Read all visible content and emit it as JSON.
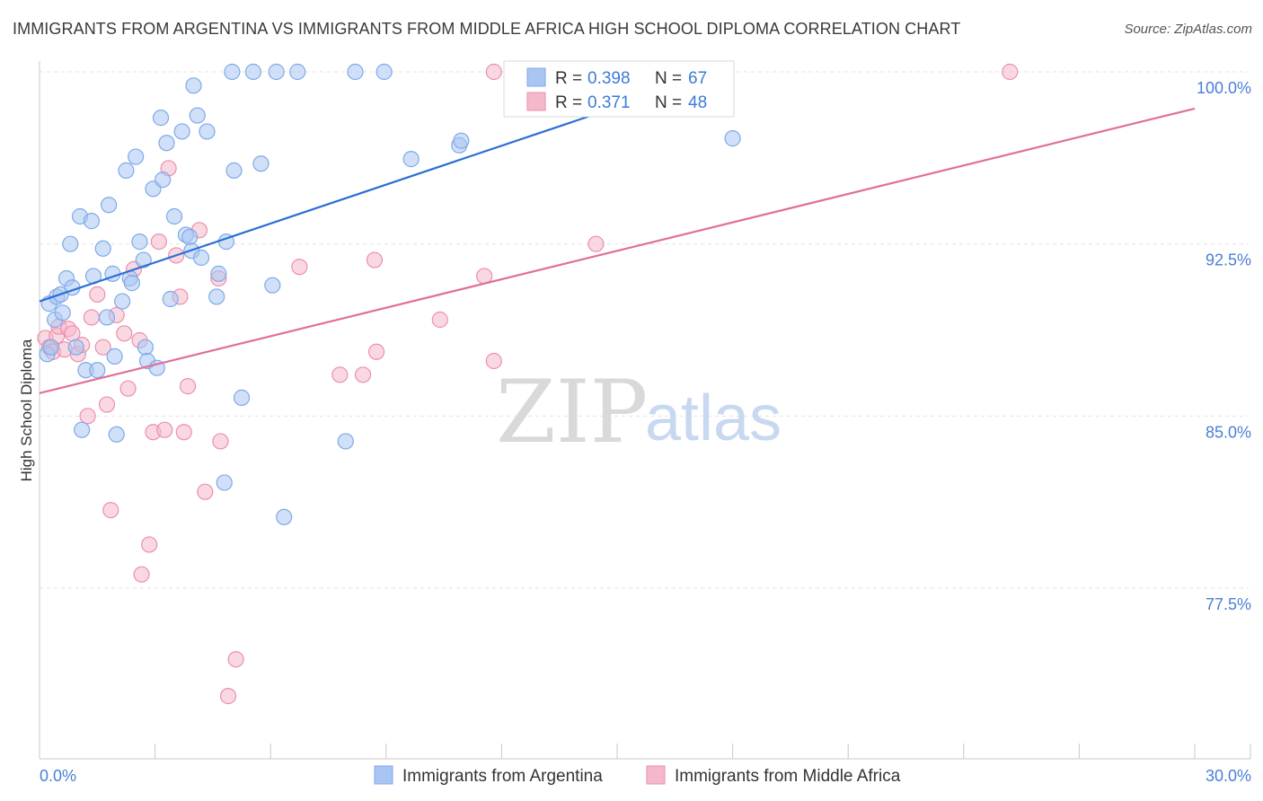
{
  "title": "IMMIGRANTS FROM ARGENTINA VS IMMIGRANTS FROM MIDDLE AFRICA HIGH SCHOOL DIPLOMA CORRELATION CHART",
  "source": "Source: ZipAtlas.com",
  "watermark": {
    "zip": "ZIP",
    "atlas": "atlas"
  },
  "legend": {
    "r_label": "R =",
    "n_label": "N =",
    "items": [
      {
        "r": "0.398",
        "n": "67",
        "color": "#a9c6f2"
      },
      {
        "r": "0.371",
        "n": "48",
        "color": "#f5b8cb"
      }
    ]
  },
  "bottom_legend": [
    {
      "label": "Immigrants from Argentina",
      "color": "#a9c6f2"
    },
    {
      "label": "Immigrants from Middle Africa",
      "color": "#f5b8cb"
    }
  ],
  "chart_data": {
    "type": "scatter",
    "title": "IMMIGRANTS FROM ARGENTINA VS IMMIGRANTS FROM MIDDLE AFRICA HIGH SCHOOL DIPLOMA CORRELATION CHART",
    "xlabel": "",
    "ylabel": "High School Diploma",
    "xlim": [
      0,
      30
    ],
    "ylim": [
      72,
      100.5
    ],
    "x_tick_labels": [
      {
        "value": 0,
        "label": "0.0%"
      },
      {
        "value": 30,
        "label": "30.0%"
      }
    ],
    "y_tick_labels": [
      {
        "value": 100,
        "label": "100.0%"
      },
      {
        "value": 92.5,
        "label": "92.5%"
      },
      {
        "value": 85,
        "label": "85.0%"
      },
      {
        "value": 77.5,
        "label": "77.5%"
      }
    ],
    "grid": true,
    "legend_position": "top-center",
    "colors": {
      "argentina": "#3d7ad8",
      "middle_africa": "#e07098"
    },
    "series": [
      {
        "name": "Immigrants from Argentina",
        "color": "#a9c6f2",
        "stroke": "#7fa9e8",
        "trend": {
          "x": [
            0,
            17.7
          ],
          "y": [
            90.0,
            100.0
          ],
          "color": "#2b6fd4"
        },
        "points": [
          [
            0.2,
            87.7
          ],
          [
            0.3,
            88.0
          ],
          [
            0.25,
            89.9
          ],
          [
            0.4,
            89.2
          ],
          [
            0.45,
            90.2
          ],
          [
            0.55,
            90.3
          ],
          [
            0.6,
            89.5
          ],
          [
            0.7,
            91.0
          ],
          [
            0.85,
            90.6
          ],
          [
            0.8,
            92.5
          ],
          [
            0.95,
            88.0
          ],
          [
            1.05,
            93.7
          ],
          [
            1.1,
            84.4
          ],
          [
            1.2,
            87.0
          ],
          [
            1.35,
            93.5
          ],
          [
            1.4,
            91.1
          ],
          [
            1.5,
            87.0
          ],
          [
            1.65,
            92.3
          ],
          [
            1.75,
            89.3
          ],
          [
            1.8,
            94.2
          ],
          [
            1.9,
            91.2
          ],
          [
            1.95,
            87.6
          ],
          [
            2.0,
            84.2
          ],
          [
            2.15,
            90.0
          ],
          [
            2.25,
            95.7
          ],
          [
            2.35,
            91.0
          ],
          [
            2.4,
            90.8
          ],
          [
            2.5,
            96.3
          ],
          [
            2.6,
            92.6
          ],
          [
            2.7,
            91.8
          ],
          [
            2.75,
            88.0
          ],
          [
            2.8,
            87.4
          ],
          [
            2.95,
            94.9
          ],
          [
            3.05,
            87.1
          ],
          [
            3.15,
            98.0
          ],
          [
            3.2,
            95.3
          ],
          [
            3.3,
            96.9
          ],
          [
            3.4,
            90.1
          ],
          [
            3.5,
            93.7
          ],
          [
            3.7,
            97.4
          ],
          [
            3.8,
            92.9
          ],
          [
            3.9,
            92.8
          ],
          [
            3.95,
            92.2
          ],
          [
            4.0,
            99.4
          ],
          [
            4.1,
            98.1
          ],
          [
            4.2,
            91.9
          ],
          [
            4.35,
            97.4
          ],
          [
            4.6,
            90.2
          ],
          [
            4.65,
            91.2
          ],
          [
            4.8,
            82.1
          ],
          [
            4.85,
            92.6
          ],
          [
            5.05,
            95.7
          ],
          [
            5.25,
            85.8
          ],
          [
            5.0,
            100.0
          ],
          [
            5.55,
            100.0
          ],
          [
            5.75,
            96.0
          ],
          [
            6.15,
            100.0
          ],
          [
            6.05,
            90.7
          ],
          [
            6.35,
            80.6
          ],
          [
            6.7,
            100.0
          ],
          [
            7.95,
            83.9
          ],
          [
            8.2,
            100.0
          ],
          [
            8.95,
            100.0
          ],
          [
            9.65,
            96.2
          ],
          [
            10.9,
            96.8
          ],
          [
            10.95,
            97.0
          ],
          [
            18.0,
            97.1
          ]
        ]
      },
      {
        "name": "Immigrants from Middle Africa",
        "color": "#f5b8cb",
        "stroke": "#eb8fae",
        "trend": {
          "x": [
            0,
            30
          ],
          "y": [
            86.0,
            98.4
          ],
          "color": "#e07098"
        },
        "points": [
          [
            0.15,
            88.4
          ],
          [
            0.25,
            88.0
          ],
          [
            0.35,
            87.8
          ],
          [
            0.45,
            88.5
          ],
          [
            0.5,
            88.9
          ],
          [
            0.65,
            87.9
          ],
          [
            0.75,
            88.8
          ],
          [
            0.85,
            88.6
          ],
          [
            1.0,
            87.7
          ],
          [
            1.1,
            88.1
          ],
          [
            1.25,
            85.0
          ],
          [
            1.35,
            89.3
          ],
          [
            1.5,
            90.3
          ],
          [
            1.65,
            88.0
          ],
          [
            1.75,
            85.5
          ],
          [
            1.85,
            80.9
          ],
          [
            2.0,
            89.4
          ],
          [
            2.2,
            88.6
          ],
          [
            2.3,
            86.2
          ],
          [
            2.45,
            91.4
          ],
          [
            2.6,
            88.3
          ],
          [
            2.65,
            78.1
          ],
          [
            2.85,
            79.4
          ],
          [
            2.95,
            84.3
          ],
          [
            3.1,
            92.6
          ],
          [
            3.25,
            84.4
          ],
          [
            3.35,
            95.8
          ],
          [
            3.55,
            92.0
          ],
          [
            3.65,
            90.2
          ],
          [
            3.75,
            84.3
          ],
          [
            3.85,
            86.3
          ],
          [
            4.15,
            93.1
          ],
          [
            4.3,
            81.7
          ],
          [
            4.65,
            91.0
          ],
          [
            4.7,
            83.9
          ],
          [
            4.9,
            72.8
          ],
          [
            5.1,
            74.4
          ],
          [
            6.75,
            91.5
          ],
          [
            7.8,
            86.8
          ],
          [
            8.4,
            86.8
          ],
          [
            8.7,
            91.8
          ],
          [
            8.75,
            87.8
          ],
          [
            10.4,
            89.2
          ],
          [
            11.55,
            91.1
          ],
          [
            11.8,
            87.4
          ],
          [
            11.8,
            100.0
          ],
          [
            14.45,
            92.5
          ],
          [
            25.2,
            100.0
          ]
        ]
      }
    ]
  }
}
